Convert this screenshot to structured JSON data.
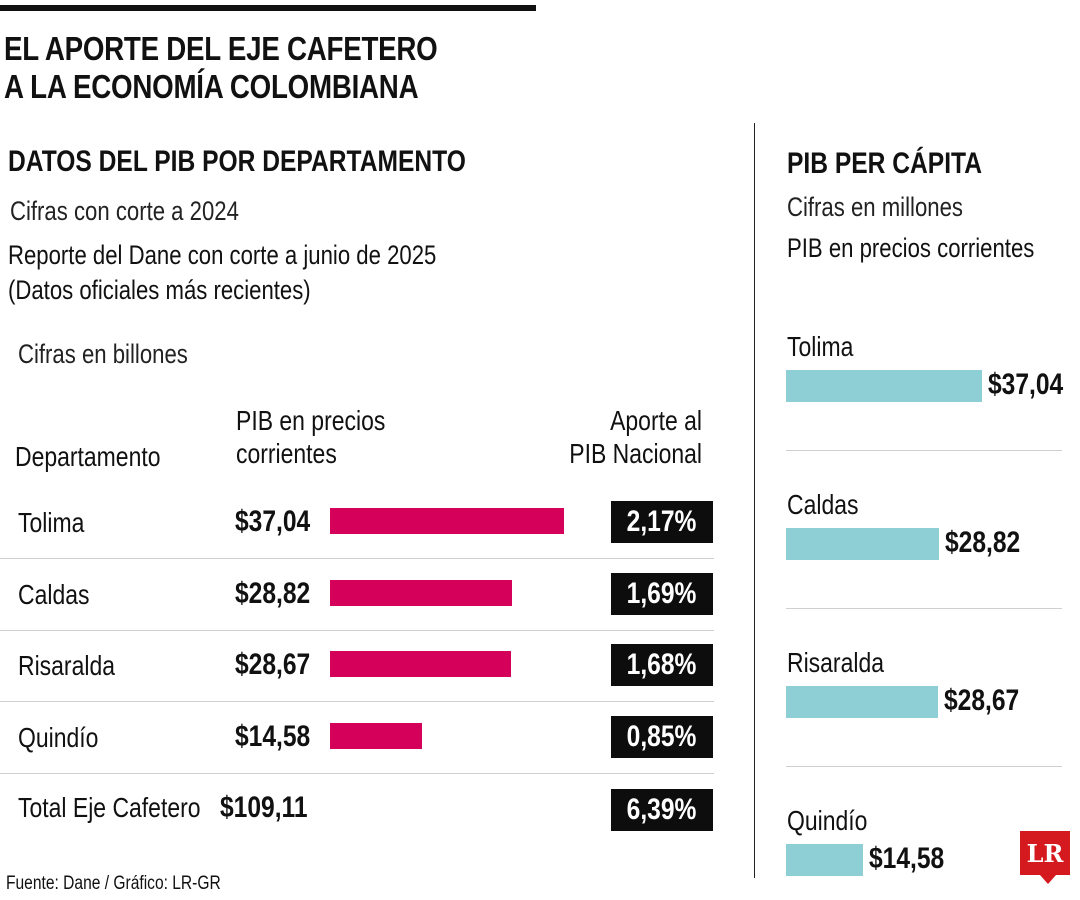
{
  "title_lines": [
    "EL APORTE DEL EJE CAFETERO",
    "A LA ECONOMÍA COLOMBIANA"
  ],
  "left": {
    "heading": "DATOS DEL PIB POR DEPARTAMENTO",
    "subtitle": "Cifras con corte a 2024",
    "report_line1": "Reporte del Dane con corte a junio de 2025",
    "report_line2": "(Datos oficiales más recientes)",
    "units": "Cifras en billones",
    "col_department": "Departamento",
    "col_pib_line1": "PIB en precios",
    "col_pib_line2": "corrientes",
    "col_aporte_line1": "Aporte al",
    "col_aporte_line2": "PIB Nacional",
    "total_label": "Total Eje Cafetero",
    "total_value": "$109,11",
    "total_pct": "6,39%"
  },
  "right": {
    "heading": "PIB PER CÁPITA",
    "subtitle": "Cifras en millones",
    "note": "PIB en precios corrientes"
  },
  "source": "Fuente: Dane / Gráfico: LR-GR",
  "logo_text": "LR",
  "colors": {
    "pib_bar": "#d4005a",
    "percapita_bar": "#8dcfd4",
    "pct_box": "#0d0d0d"
  },
  "chart_data": [
    {
      "type": "bar",
      "orientation": "horizontal",
      "title": "DATOS DEL PIB POR DEPARTAMENTO",
      "categories": [
        "Tolima",
        "Caldas",
        "Risaralda",
        "Quindío"
      ],
      "series": [
        {
          "name": "PIB en precios corrientes",
          "values": [
            37.04,
            28.82,
            28.67,
            14.58
          ],
          "labels": [
            "$37,04",
            "$28,82",
            "$28,67",
            "$14,58"
          ]
        },
        {
          "name": "Aporte al PIB Nacional",
          "values": [
            2.17,
            1.69,
            1.68,
            0.85
          ],
          "labels": [
            "2,17%",
            "1,69%",
            "1,68%",
            "0,85%"
          ]
        }
      ],
      "xlim": [
        0,
        37.04
      ]
    },
    {
      "type": "bar",
      "orientation": "horizontal",
      "title": "PIB PER CÁPITA",
      "categories": [
        "Tolima",
        "Caldas",
        "Risaralda",
        "Quindío"
      ],
      "values": [
        37.04,
        28.82,
        28.67,
        14.58
      ],
      "labels": [
        "$37,04",
        "$28,82",
        "$28,67",
        "$14,58"
      ],
      "xlim": [
        0,
        37.04
      ]
    }
  ]
}
